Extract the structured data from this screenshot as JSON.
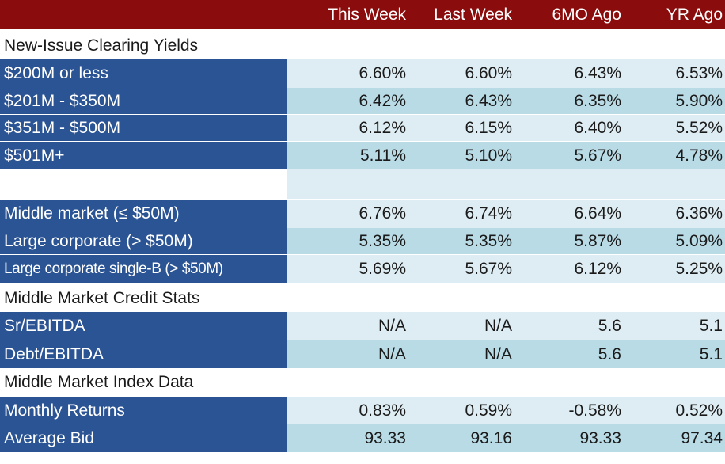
{
  "header": {
    "label": "",
    "columns": [
      "This Week",
      "Last Week",
      "6MO Ago",
      "YR Ago"
    ]
  },
  "sections": {
    "new_issue": "New-Issue Clearing Yields",
    "credit_stats": "Middle Market Credit Stats",
    "index_data": "Middle Market Index Data"
  },
  "rows": {
    "r200": {
      "label": "$200M or less",
      "values": [
        "6.60%",
        "6.60%",
        "6.43%",
        "6.53%"
      ]
    },
    "r201": {
      "label": "$201M - $350M",
      "values": [
        "6.42%",
        "6.43%",
        "6.35%",
        "5.90%"
      ]
    },
    "r351": {
      "label": "$351M - $500M",
      "values": [
        "6.12%",
        "6.15%",
        "6.40%",
        "5.52%"
      ]
    },
    "r501": {
      "label": "$501M+",
      "values": [
        "5.11%",
        "5.10%",
        "5.67%",
        "4.78%"
      ]
    },
    "middle": {
      "label": "Middle market (≤ $50M)",
      "values": [
        "6.76%",
        "6.74%",
        "6.64%",
        "6.36%"
      ]
    },
    "large": {
      "label": "Large corporate (> $50M)",
      "values": [
        "5.35%",
        "5.35%",
        "5.87%",
        "5.09%"
      ]
    },
    "largeb": {
      "label": "Large corporate single-B (> $50M)",
      "values": [
        "5.69%",
        "5.67%",
        "6.12%",
        "5.25%"
      ]
    },
    "sr": {
      "label": "Sr/EBITDA",
      "values": [
        "N/A",
        "N/A",
        "5.6",
        "5.1"
      ]
    },
    "debt": {
      "label": "Debt/EBITDA",
      "values": [
        "N/A",
        "N/A",
        "5.6",
        "5.1"
      ]
    },
    "monthly": {
      "label": "Monthly Returns",
      "values": [
        "0.83%",
        "0.59%",
        "-0.58%",
        "0.52%"
      ]
    },
    "bid": {
      "label": "Average Bid",
      "values": [
        "93.33",
        "93.16",
        "93.33",
        "97.34"
      ]
    }
  },
  "colors": {
    "header_bg": "#8b0c0c",
    "label_bg": "#2b5494",
    "row_light": "#deedf3",
    "row_mid": "#b9dbe6"
  }
}
